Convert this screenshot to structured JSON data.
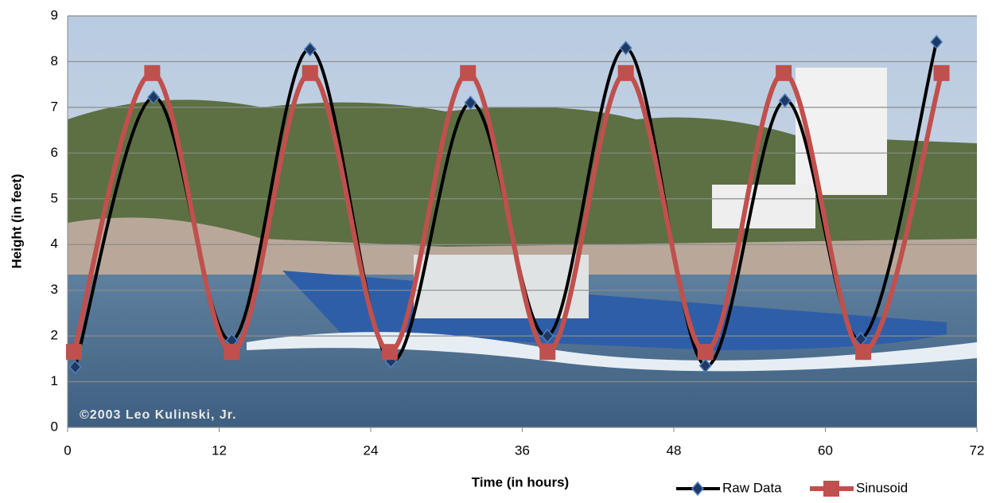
{
  "chart_data": {
    "type": "line",
    "xlabel": "Time (in hours)",
    "ylabel": "Height (in feet)",
    "watermark": "©2003 Leo Kulinski, Jr.",
    "xlim": [
      0,
      72
    ],
    "xticks": [
      0,
      12,
      24,
      36,
      48,
      60,
      72
    ],
    "ylim": [
      0,
      9
    ],
    "yticks": [
      0,
      1,
      2,
      3,
      4,
      5,
      6,
      7,
      8,
      9
    ],
    "grid": true,
    "legend": "bottom-right",
    "series": [
      {
        "name": "Raw Data",
        "color": "#000000",
        "marker": "diamond",
        "marker_color": "#1f3864",
        "x": [
          0.6,
          6.8,
          13.0,
          19.2,
          25.6,
          31.9,
          38.0,
          44.2,
          50.5,
          56.8,
          62.8,
          68.8
        ],
        "values": [
          1.32,
          7.22,
          1.9,
          8.27,
          1.45,
          7.1,
          2.0,
          8.3,
          1.35,
          7.15,
          1.93,
          8.43
        ]
      },
      {
        "name": "Sinusoid",
        "color": "#c0504d",
        "marker": "square",
        "marker_color": "#c0504d",
        "x": [
          0.5,
          6.7,
          13.0,
          19.2,
          25.5,
          31.7,
          38.0,
          44.2,
          50.5,
          56.7,
          63.0,
          69.2
        ],
        "values": [
          1.65,
          7.75,
          1.65,
          7.75,
          1.65,
          7.75,
          1.65,
          7.75,
          1.65,
          7.75,
          1.65,
          7.75
        ]
      }
    ]
  }
}
